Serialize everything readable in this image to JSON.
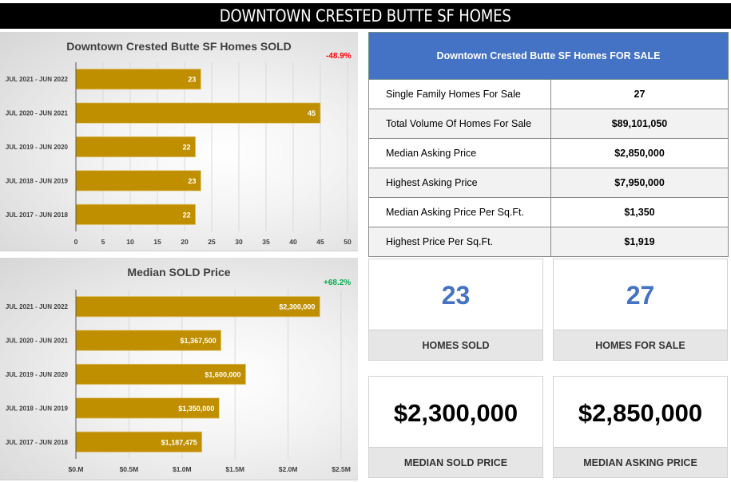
{
  "header": {
    "title": "DOWNTOWN CRESTED BUTTE SF HOMES"
  },
  "colors": {
    "bar": "#BF8F00",
    "header_blue": "#4472C4",
    "negative": "#FF0000",
    "positive": "#00B050",
    "kpi_blue": "#4472C4"
  },
  "chart_data": [
    {
      "type": "bar",
      "orientation": "horizontal",
      "title": "Downtown Crested Butte SF Homes SOLD",
      "change_label": "-48.9%",
      "change_direction": "negative",
      "categories": [
        "JUL 2021 - JUN 2022",
        "JUL 2020 - JUN 2021",
        "JUL 2019 - JUN 2020",
        "JUL 2018 - JUN 2019",
        "JUL 2017 - JUN 2018"
      ],
      "values": [
        23,
        45,
        22,
        23,
        22
      ],
      "data_labels": [
        "23",
        "45",
        "22",
        "23",
        "22"
      ],
      "xlabel": "",
      "ylabel": "",
      "xlim": [
        0,
        50
      ],
      "xticks": [
        0,
        5,
        10,
        15,
        20,
        25,
        30,
        35,
        40,
        45,
        50
      ],
      "xtick_labels": [
        "0",
        "5",
        "10",
        "15",
        "20",
        "25",
        "30",
        "35",
        "40",
        "45",
        "50"
      ],
      "grid": true,
      "legend": "none"
    },
    {
      "type": "bar",
      "orientation": "horizontal",
      "title": "Median SOLD Price",
      "change_label": "+68.2%",
      "change_direction": "positive",
      "categories": [
        "JUL 2021 - JUN 2022",
        "JUL 2020 - JUN 2021",
        "JUL 2019 - JUN 2020",
        "JUL 2018 - JUN 2019",
        "JUL 2017 - JUN 2018"
      ],
      "values": [
        2300000,
        1367500,
        1600000,
        1350000,
        1187475
      ],
      "data_labels": [
        "$2,300,000",
        "$1,367,500",
        "$1,600,000",
        "$1,350,000",
        "$1,187,475"
      ],
      "xlabel": "",
      "ylabel": "",
      "xlim": [
        0,
        2500000
      ],
      "xticks": [
        0,
        500000,
        1000000,
        1500000,
        2000000,
        2500000
      ],
      "xtick_labels": [
        "$0.M",
        "$0.5M",
        "$1.0M",
        "$1.5M",
        "$2.0M",
        "$2.5M"
      ],
      "grid": true,
      "legend": "none"
    }
  ],
  "for_sale_table": {
    "title": "Downtown Crested Butte SF Homes FOR SALE",
    "rows": [
      {
        "label": "Single Family Homes For Sale",
        "value": "27"
      },
      {
        "label": "Total Volume Of Homes For Sale",
        "value": "$89,101,050"
      },
      {
        "label": "Median Asking Price",
        "value": "$2,850,000"
      },
      {
        "label": "Highest Asking Price",
        "value": "$7,950,000"
      },
      {
        "label": "Median Asking Price Per Sq.Ft.",
        "value": "$1,350"
      },
      {
        "label": "Highest Price Per Sq.Ft.",
        "value": "$1,919"
      }
    ]
  },
  "kpis": [
    {
      "value": "23",
      "label": "HOMES SOLD"
    },
    {
      "value": "27",
      "label": "HOMES FOR SALE"
    },
    {
      "value": "$2,300,000",
      "label": "MEDIAN SOLD PRICE"
    },
    {
      "value": "$2,850,000",
      "label": "MEDIAN ASKING PRICE"
    }
  ]
}
